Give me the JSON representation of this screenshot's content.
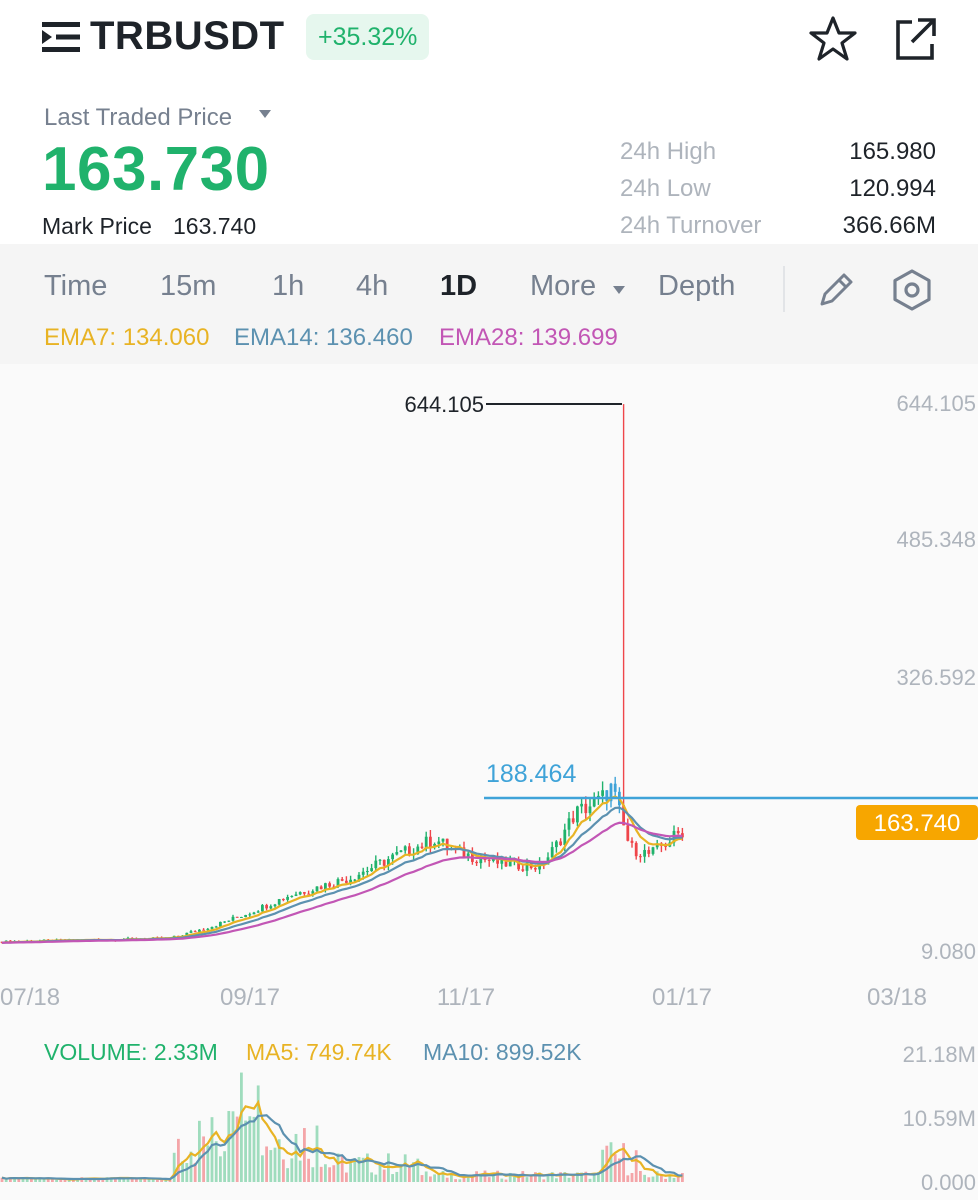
{
  "header": {
    "symbol": "TRBUSDT",
    "change": "+35.32%",
    "menu_icon": "menu-icon",
    "star_icon": "star-icon",
    "share_icon": "share-icon"
  },
  "price": {
    "label": "Last Traded Price",
    "last": "163.730",
    "mark_label": "Mark Price",
    "mark": "163.740"
  },
  "stats": [
    {
      "label": "24h High",
      "value": "165.980"
    },
    {
      "label": "24h Low",
      "value": "120.994"
    },
    {
      "label": "24h Turnover",
      "value": "366.66M"
    }
  ],
  "tabs": [
    {
      "label": "Time",
      "active": false
    },
    {
      "label": "15m",
      "active": false
    },
    {
      "label": "1h",
      "active": false
    },
    {
      "label": "4h",
      "active": false
    },
    {
      "label": "1D",
      "active": true
    },
    {
      "label": "More",
      "active": false
    },
    {
      "label": "Depth",
      "active": false
    }
  ],
  "ema": {
    "ema7": "EMA7: 134.060",
    "ema14": "EMA14: 136.460",
    "ema28": "EMA28: 139.699"
  },
  "colors": {
    "up": "#20b26c",
    "down": "#ef454a",
    "ema7": "#e8b324",
    "ema14": "#5c91b0",
    "ema28": "#c256b5",
    "price_line": "#3fa3d8",
    "price_tag": "#f7a600"
  },
  "chart_data": {
    "type": "candlestick",
    "y_ticks": [
      "644.105",
      "485.348",
      "326.592",
      "9.080"
    ],
    "x_ticks": [
      "07/18",
      "09/17",
      "11/17",
      "01/17",
      "03/18"
    ],
    "ylim": [
      9.08,
      644.105
    ],
    "max_label": "644.105",
    "crosshair_label": "188.464",
    "current_price_tag": "163.740",
    "volume": {
      "label": "VOLUME: 2.33M",
      "ma5": "MA5: 749.74K",
      "ma10": "MA10: 899.52K",
      "y_ticks": [
        "21.18M",
        "10.59M",
        "0.000"
      ]
    }
  }
}
